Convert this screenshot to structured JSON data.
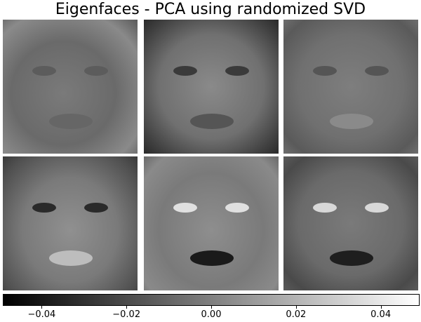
{
  "chart_data": {
    "type": "heatmap",
    "title": "Eigenfaces - PCA using randomized SVD",
    "layout": "2x3 image grid",
    "colormap": "gray",
    "vmin": -0.049,
    "vmax": 0.049,
    "images": [
      {
        "index": 1
      },
      {
        "index": 2
      },
      {
        "index": 3
      },
      {
        "index": 4
      },
      {
        "index": 5
      },
      {
        "index": 6
      }
    ],
    "colorbar": {
      "orientation": "horizontal",
      "ticks": [
        -0.04,
        -0.02,
        0.0,
        0.02,
        0.04
      ],
      "tick_labels": [
        "−0.04",
        "−0.02",
        "0.00",
        "0.02",
        "0.04"
      ]
    }
  }
}
